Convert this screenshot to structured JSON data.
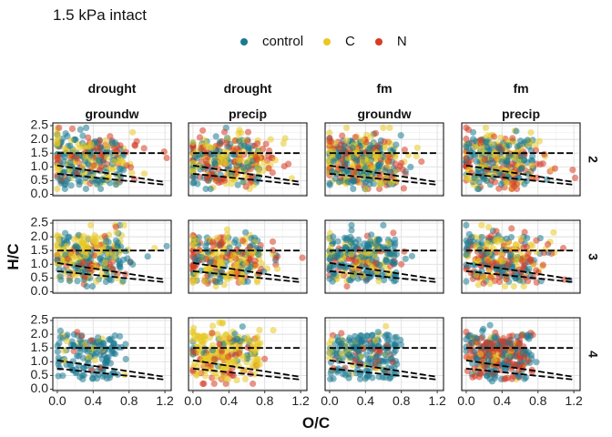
{
  "chart_data": {
    "type": "scatter",
    "title": "1.5 kPa intact",
    "xlabel": "O/C",
    "ylabel": "H/C",
    "xlim": [
      -0.05,
      1.27
    ],
    "ylim": [
      -0.05,
      2.6
    ],
    "x_ticks": [
      "0.0",
      "0.4",
      "0.8",
      "1.2"
    ],
    "x_tick_values": [
      0.0,
      0.4,
      0.8,
      1.2
    ],
    "y_ticks": [
      "0.0",
      "0.5",
      "1.0",
      "1.5",
      "2.0",
      "2.5"
    ],
    "y_tick_values": [
      0.0,
      0.5,
      1.0,
      1.5,
      2.0,
      2.5
    ],
    "grid": true,
    "legend_position": "top",
    "series": [
      {
        "name": "control",
        "color": "#1b7a91"
      },
      {
        "name": "C",
        "color": "#e8c825"
      },
      {
        "name": "N",
        "color": "#d63c24"
      }
    ],
    "col_facets": [
      {
        "line1": "drought",
        "line2": "groundw"
      },
      {
        "line1": "drought",
        "line2": "precip"
      },
      {
        "line1": "fm",
        "line2": "groundw"
      },
      {
        "line1": "fm",
        "line2": "precip"
      }
    ],
    "row_facets": [
      "2",
      "3",
      "4"
    ],
    "reference_lines": [
      {
        "x": [
          0.0,
          1.2
        ],
        "y": [
          1.5,
          1.5
        ]
      },
      {
        "x": [
          0.0,
          1.2
        ],
        "y": [
          1.05,
          0.45
        ]
      },
      {
        "x": [
          0.0,
          1.2
        ],
        "y": [
          0.75,
          0.35
        ]
      }
    ],
    "panels": [
      {
        "row": "2",
        "col": 0,
        "dist": [
          [
            0.28,
            0.25,
            1.25,
            0.5,
            0.4,
            0.55,
            140
          ],
          [
            0.25,
            0.25,
            1.3,
            0.5,
            0.45,
            0.35,
            90
          ],
          [
            0.45,
            0.28,
            1.45,
            0.45,
            0.5,
            0.1,
            70
          ]
        ]
      },
      {
        "row": "2",
        "col": 1,
        "dist": [
          [
            0.3,
            0.28,
            1.25,
            0.5,
            0.3,
            0.6,
            100
          ],
          [
            0.35,
            0.28,
            1.3,
            0.5,
            0.4,
            0.4,
            120
          ],
          [
            0.35,
            0.28,
            1.2,
            0.5,
            0.5,
            0.2,
            100
          ]
        ]
      },
      {
        "row": "2",
        "col": 2,
        "dist": [
          [
            0.25,
            0.22,
            1.2,
            0.5,
            0.3,
            0.6,
            160
          ],
          [
            0.35,
            0.28,
            1.3,
            0.5,
            0.4,
            0.3,
            150
          ],
          [
            0.35,
            0.28,
            1.25,
            0.5,
            0.5,
            0.15,
            90
          ]
        ]
      },
      {
        "row": "2",
        "col": 3,
        "dist": [
          [
            0.3,
            0.25,
            1.2,
            0.5,
            0.3,
            0.6,
            140
          ],
          [
            0.35,
            0.28,
            1.2,
            0.5,
            0.4,
            0.4,
            110
          ],
          [
            0.4,
            0.3,
            1.1,
            0.5,
            0.5,
            0.2,
            90
          ]
        ]
      },
      {
        "row": "3",
        "col": 0,
        "dist": [
          [
            0.35,
            0.25,
            1.3,
            0.45,
            0.3,
            0.55,
            120
          ],
          [
            0.3,
            0.22,
            1.45,
            0.4,
            0.35,
            0.35,
            140
          ],
          [
            0.4,
            0.25,
            1.2,
            0.4,
            0.5,
            0.1,
            40
          ]
        ]
      },
      {
        "row": "3",
        "col": 1,
        "dist": [
          [
            0.4,
            0.28,
            1.15,
            0.45,
            0.4,
            0.5,
            80
          ],
          [
            0.35,
            0.28,
            1.2,
            0.5,
            0.4,
            0.35,
            130
          ],
          [
            0.35,
            0.28,
            1.2,
            0.45,
            0.5,
            0.15,
            90
          ]
        ]
      },
      {
        "row": "3",
        "col": 2,
        "dist": [
          [
            0.35,
            0.22,
            1.3,
            0.45,
            0.3,
            0.65,
            170
          ],
          [
            0.3,
            0.25,
            1.2,
            0.45,
            0.4,
            0.25,
            70
          ],
          [
            0.4,
            0.25,
            1.1,
            0.45,
            0.5,
            0.1,
            40
          ]
        ]
      },
      {
        "row": "3",
        "col": 3,
        "dist": [
          [
            0.35,
            0.25,
            1.2,
            0.45,
            0.3,
            0.45,
            110
          ],
          [
            0.35,
            0.25,
            1.2,
            0.45,
            0.4,
            0.35,
            90
          ],
          [
            0.45,
            0.25,
            1.15,
            0.45,
            0.5,
            0.2,
            100
          ]
        ]
      },
      {
        "row": "4",
        "col": 0,
        "dist": [
          [
            0.35,
            0.15,
            1.55,
            0.25,
            0.35,
            0.8,
            130
          ],
          [
            0.35,
            0.2,
            1.5,
            0.3,
            0.45,
            0.15,
            15
          ],
          [
            0.3,
            0.2,
            1.4,
            0.3,
            0.5,
            0.05,
            8
          ]
        ]
      },
      {
        "row": "4",
        "col": 1,
        "dist": [
          [
            0.4,
            0.22,
            1.5,
            0.35,
            0.35,
            0.2,
            30
          ],
          [
            0.35,
            0.22,
            1.45,
            0.5,
            0.4,
            0.65,
            180
          ],
          [
            0.3,
            0.22,
            1.0,
            0.45,
            0.5,
            0.15,
            50
          ]
        ]
      },
      {
        "row": "4",
        "col": 2,
        "dist": [
          [
            0.4,
            0.18,
            1.5,
            0.3,
            0.35,
            0.75,
            170
          ],
          [
            0.35,
            0.2,
            1.3,
            0.45,
            0.45,
            0.15,
            30
          ],
          [
            0.4,
            0.2,
            1.3,
            0.4,
            0.5,
            0.1,
            25
          ]
        ]
      },
      {
        "row": "4",
        "col": 3,
        "dist": [
          [
            0.35,
            0.18,
            1.45,
            0.35,
            0.35,
            0.5,
            130
          ],
          [
            0.35,
            0.2,
            1.4,
            0.4,
            0.45,
            0.15,
            30
          ],
          [
            0.4,
            0.2,
            1.35,
            0.4,
            0.5,
            0.55,
            150
          ]
        ]
      }
    ]
  }
}
